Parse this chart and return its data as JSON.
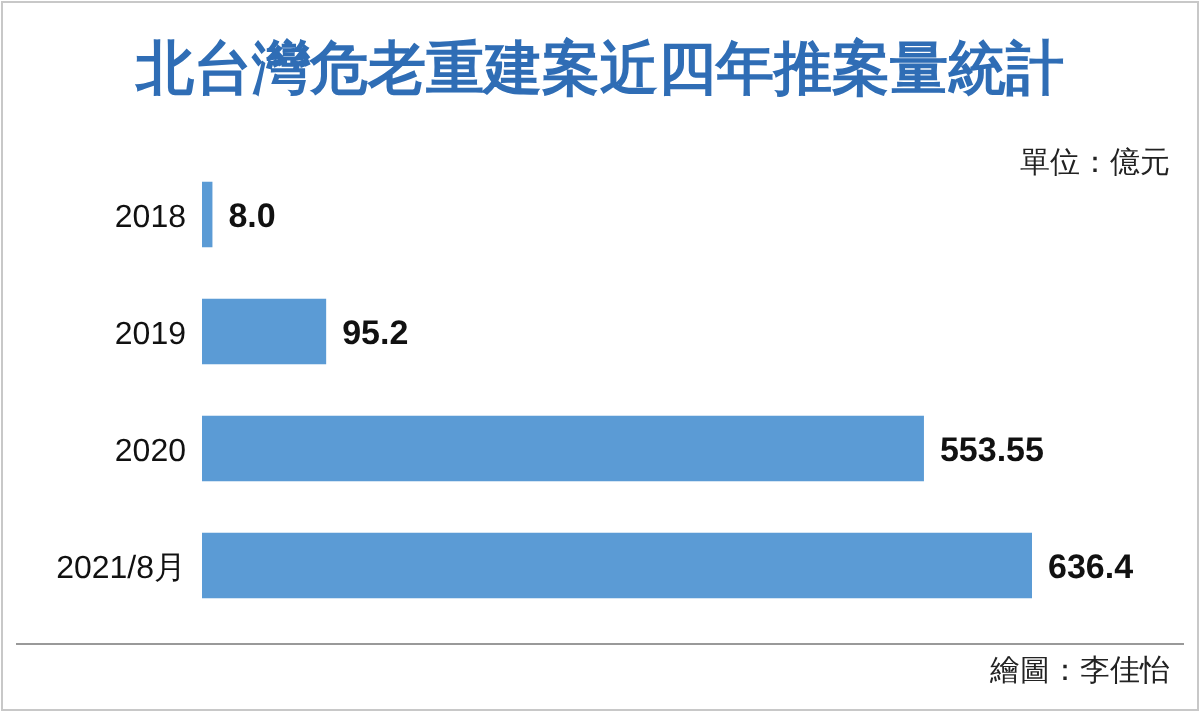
{
  "chart_data": {
    "type": "bar",
    "orientation": "horizontal",
    "title": "北台灣危老重建案近四年推案量統計",
    "categories": [
      "2018",
      "2019",
      "2020",
      "2021/8月"
    ],
    "values": [
      8.0,
      95.2,
      553.55,
      636.4
    ],
    "value_labels": [
      "8.0",
      "95.2",
      "553.55",
      "636.4"
    ],
    "color": "#5b9bd5",
    "annotations": [
      "單位：億元",
      "繪圖：李佳怡"
    ]
  }
}
